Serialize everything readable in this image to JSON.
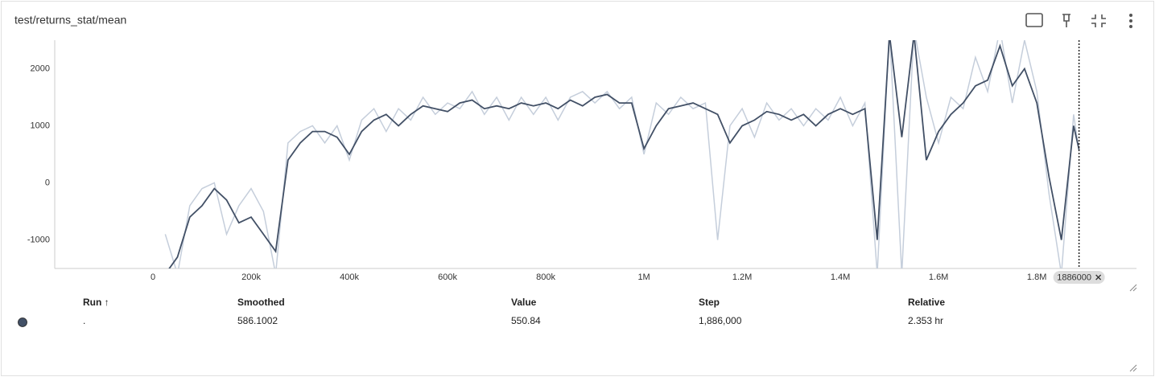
{
  "chart_data": {
    "type": "line",
    "title": "test/returns_stat/mean",
    "x": [
      25000,
      50000,
      75000,
      100000,
      125000,
      150000,
      175000,
      200000,
      225000,
      250000,
      275000,
      300000,
      325000,
      350000,
      375000,
      400000,
      425000,
      450000,
      475000,
      500000,
      525000,
      550000,
      575000,
      600000,
      625000,
      650000,
      675000,
      700000,
      725000,
      750000,
      775000,
      800000,
      825000,
      850000,
      875000,
      900000,
      925000,
      950000,
      975000,
      1000000,
      1025000,
      1050000,
      1075000,
      1100000,
      1125000,
      1150000,
      1175000,
      1200000,
      1225000,
      1250000,
      1275000,
      1300000,
      1325000,
      1350000,
      1375000,
      1400000,
      1425000,
      1450000,
      1475000,
      1500000,
      1525000,
      1550000,
      1575000,
      1600000,
      1625000,
      1650000,
      1675000,
      1700000,
      1725000,
      1750000,
      1775000,
      1800000,
      1825000,
      1850000,
      1875000,
      1886000
    ],
    "series": [
      {
        "name": "raw",
        "color": "#c5cedb",
        "values": [
          -900,
          -1600,
          -400,
          -100,
          0,
          -900,
          -400,
          -100,
          -500,
          -1600,
          700,
          900,
          1000,
          700,
          1000,
          400,
          1100,
          1300,
          900,
          1300,
          1100,
          1500,
          1200,
          1400,
          1300,
          1600,
          1200,
          1500,
          1100,
          1500,
          1200,
          1500,
          1100,
          1500,
          1600,
          1400,
          1600,
          1300,
          1500,
          500,
          1400,
          1200,
          1500,
          1300,
          1400,
          -1000,
          1000,
          1300,
          800,
          1400,
          1100,
          1300,
          1000,
          1300,
          1100,
          1500,
          1000,
          1400,
          -1600,
          2700,
          -1600,
          2700,
          1500,
          700,
          1500,
          1300,
          2200,
          1600,
          2700,
          1400,
          2500,
          1600,
          -200,
          -1600,
          1200,
          550.84
        ]
      },
      {
        "name": "smoothed",
        "color": "#425066",
        "values": [
          -1600,
          -1300,
          -600,
          -400,
          -100,
          -300,
          -700,
          -600,
          -900,
          -1200,
          400,
          700,
          900,
          900,
          800,
          500,
          900,
          1100,
          1200,
          1000,
          1200,
          1350,
          1300,
          1250,
          1400,
          1450,
          1300,
          1350,
          1300,
          1400,
          1350,
          1400,
          1300,
          1450,
          1350,
          1500,
          1550,
          1400,
          1400,
          600,
          1000,
          1300,
          1350,
          1400,
          1300,
          1200,
          700,
          1000,
          1100,
          1250,
          1200,
          1100,
          1200,
          1000,
          1200,
          1300,
          1200,
          1300,
          -1000,
          2600,
          800,
          2600,
          400,
          900,
          1200,
          1400,
          1700,
          1800,
          2400,
          1700,
          2000,
          1400,
          100,
          -1000,
          1000,
          586.1002
        ]
      }
    ],
    "xlim": [
      -200000,
      2003000
    ],
    "ylim": [
      -1500,
      2500
    ],
    "xticks": [
      0,
      {
        "value": 200000,
        "label": "200k"
      },
      {
        "value": 400000,
        "label": "400k"
      },
      {
        "value": 600000,
        "label": "600k"
      },
      {
        "value": 800000,
        "label": "800k"
      },
      {
        "value": 1000000,
        "label": "1M"
      },
      {
        "value": 1200000,
        "label": "1.2M"
      },
      {
        "value": 1400000,
        "label": "1.4M"
      },
      {
        "value": 1600000,
        "label": "1.6M"
      },
      {
        "value": 1800000,
        "label": "1.8M"
      }
    ],
    "yticks": [
      -1000,
      0,
      1000,
      2000
    ],
    "grid": true,
    "cursor_step": 1886000
  },
  "table": {
    "headers": [
      "Run ↑",
      "Smoothed",
      "Value",
      "Step",
      "Relative"
    ],
    "rows": [
      [
        ".",
        "586.1002",
        "550.84",
        "1,886,000",
        "2.353 hr"
      ]
    ]
  }
}
